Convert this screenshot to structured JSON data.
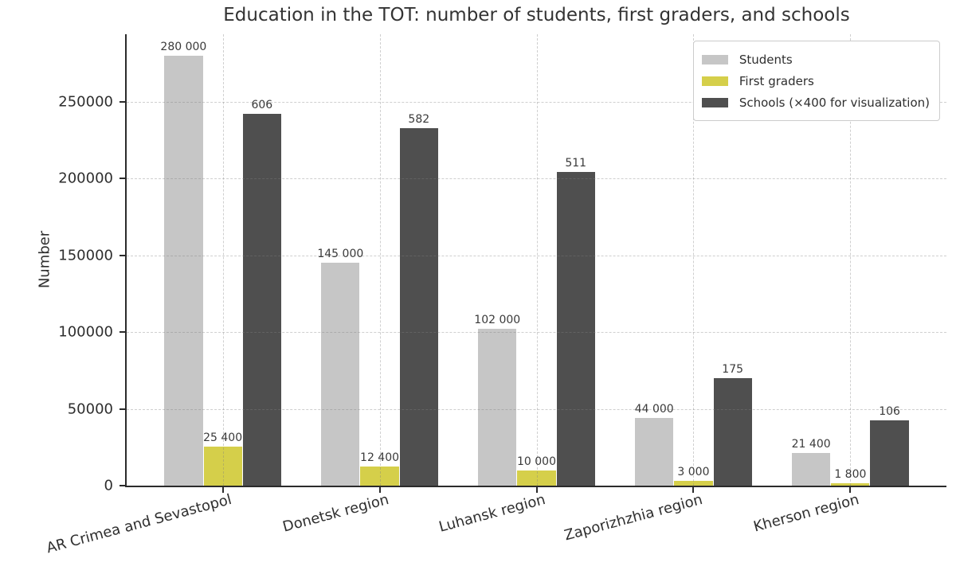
{
  "title": "Education in the TOT: number of students, first graders, and schools",
  "chart_data": {
    "type": "bar",
    "title": "Education in the TOT: number of students, first graders, and schools",
    "categories": [
      "AR Crimea and Sevastopol",
      "Donetsk region",
      "Luhansk region",
      "Zaporizhzhia region",
      "Kherson region"
    ],
    "series": [
      {
        "name": "Students",
        "color": "#c6c6c6",
        "values": [
          280000,
          145000,
          102000,
          44000,
          21400
        ],
        "scale": 1,
        "bar_labels": [
          "280 000",
          "145 000",
          "102 000",
          "44 000",
          "21 400"
        ]
      },
      {
        "name": "First graders",
        "color": "#d5cf4a",
        "values": [
          25400,
          12400,
          10000,
          3000,
          1800
        ],
        "scale": 1,
        "bar_labels": [
          "25 400",
          "12 400",
          "10 000",
          "3 000",
          "1 800"
        ]
      },
      {
        "name": "Schools (×400 for visualization)",
        "color": "#4f4f4f",
        "values": [
          606,
          582,
          511,
          175,
          106
        ],
        "scale": 400,
        "bar_labels": [
          "606",
          "582",
          "511",
          "175",
          "106"
        ]
      }
    ],
    "xlabel": "",
    "ylabel": "Number",
    "ylim": [
      0,
      294000
    ],
    "yticks": [
      0,
      50000,
      100000,
      150000,
      200000,
      250000
    ],
    "ytick_labels": [
      "0",
      "50000",
      "100000",
      "150000",
      "200000",
      "250000"
    ],
    "grid": true,
    "grid_style": "dashed",
    "legend_position": "top-right",
    "colors": {
      "spine": "#2b2b2b",
      "grid": "#808080",
      "background": "#ffffff",
      "text": "#2e2e2e"
    }
  }
}
